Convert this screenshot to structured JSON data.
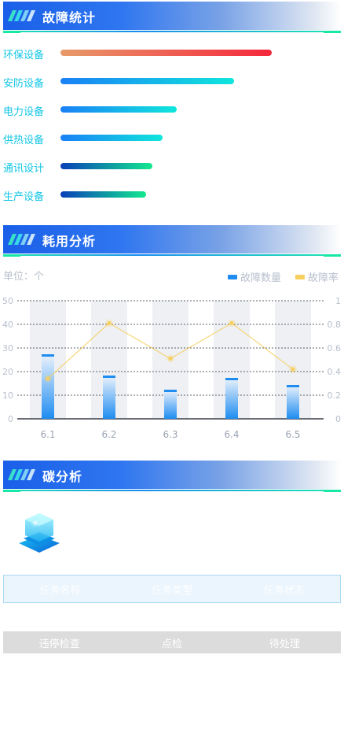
{
  "sections": {
    "fault": {
      "title": "故障统计"
    },
    "usage": {
      "title": "耗用分析"
    },
    "carbon": {
      "title": "碳分析"
    }
  },
  "fault_stats": [
    {
      "label": "环保设备",
      "value": 0.62,
      "gradient": [
        "#e79a6a",
        "#f5283c"
      ]
    },
    {
      "label": "安防设备",
      "value": 0.51,
      "gradient": [
        "#1a80f6",
        "#10e6dc"
      ]
    },
    {
      "label": "电力设备",
      "value": 0.34,
      "gradient": [
        "#1a80f6",
        "#10e6dc"
      ]
    },
    {
      "label": "供热设备",
      "value": 0.3,
      "gradient": [
        "#1a80f6",
        "#10e6dc"
      ]
    },
    {
      "label": "通讯设计",
      "value": 0.27,
      "gradient": [
        "#0a3fb8",
        "#12e890"
      ]
    },
    {
      "label": "生产设备",
      "value": 0.25,
      "gradient": [
        "#0a3fb8",
        "#12e890"
      ]
    }
  ],
  "usage_chart": {
    "unit_label": "单位：个",
    "legend": [
      {
        "name": "故障数量",
        "color": "#1e8cf0"
      },
      {
        "name": "故障率",
        "color": "#f6cf5e"
      }
    ]
  },
  "chart_data": {
    "type": "bar",
    "categories": [
      "6.1",
      "6.2",
      "6.3",
      "6.4",
      "6.5"
    ],
    "series": [
      {
        "name": "故障数量",
        "type": "bar",
        "axis": "left",
        "values": [
          27,
          18,
          12,
          17,
          14
        ]
      },
      {
        "name": "故障率",
        "type": "line",
        "axis": "right",
        "values": [
          0.34,
          0.81,
          0.51,
          0.81,
          0.42
        ]
      }
    ],
    "ylim_left": [
      0,
      50
    ],
    "yticks_left": [
      0,
      10,
      20,
      30,
      40,
      50
    ],
    "ylim_right": [
      0,
      1
    ],
    "yticks_right": [
      "0",
      "0.2",
      "0.4",
      "0.6",
      "0.8",
      "1"
    ],
    "grid": true,
    "legend_position": "top-right",
    "colors": {
      "bar": "#1e8cf0",
      "line": "#f6cf5e",
      "band": "#eef0f4"
    }
  },
  "task_table": {
    "headers": [
      "任务名称",
      "任务类型",
      "任务状态"
    ],
    "rows": [
      [
        "违停检查",
        "点检",
        "待处理"
      ]
    ]
  },
  "icons": {
    "header_stripes": "slash-stripes-icon",
    "carbon": "carbon-cube-icon"
  }
}
